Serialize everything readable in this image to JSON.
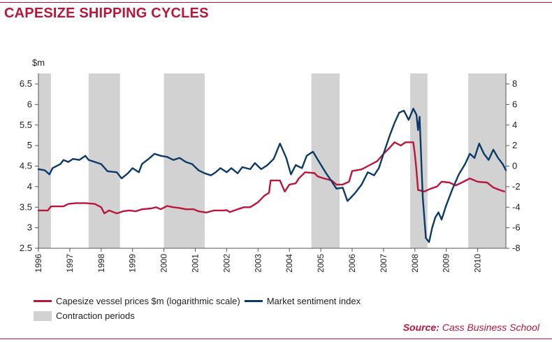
{
  "title": "CAPESIZE SHIPPING CYCLES",
  "source_label": "Source:",
  "source_text": "Cass Business School",
  "colors": {
    "brand": "#b8173b",
    "price": "#b8173b",
    "sentiment": "#0b3a66",
    "contraction": "#d2d2d2"
  },
  "chart_data": {
    "type": "line",
    "title": "CAPESIZE SHIPPING CYCLES",
    "ylabel_left": "$m",
    "y_left": {
      "min": 2.5,
      "max": 6.5,
      "ticks": [
        2.5,
        3,
        3.5,
        4,
        4.5,
        5,
        5.5,
        6,
        6.5
      ],
      "tick_labels": [
        "2.5",
        "3",
        "3.5",
        "4",
        "4.5",
        "5",
        "5.5",
        "6",
        "6.5"
      ]
    },
    "y_right": {
      "min": -8,
      "max": 8,
      "ticks": [
        -8,
        -6,
        -4,
        -2,
        0,
        2,
        4,
        6,
        8
      ],
      "tick_labels": [
        "-8",
        "-6",
        "-4",
        "-2",
        "0",
        "2",
        "4",
        "6",
        "8"
      ]
    },
    "x": {
      "min": 1996,
      "max": 2010.9,
      "ticks": [
        1996,
        1997,
        1998,
        1999,
        2000,
        2001,
        2002,
        2003,
        2004,
        2005,
        2006,
        2007,
        2008,
        2009,
        2010
      ],
      "tick_labels": [
        "1996",
        "1997",
        "1998",
        "1999",
        "2000",
        "2001",
        "2002",
        "2003",
        "2004",
        "2005",
        "2006",
        "2007",
        "2008",
        "2009",
        "2010"
      ]
    },
    "contraction_periods": [
      [
        1996.0,
        1996.4
      ],
      [
        1997.6,
        1998.6
      ],
      [
        2000.0,
        2001.3
      ],
      [
        2004.7,
        2005.6
      ],
      [
        2007.85,
        2008.4
      ],
      [
        2009.7,
        2010.9
      ]
    ],
    "series": [
      {
        "name": "Capesize vessel prices $m (logarithmic scale)",
        "axis": "left",
        "points": [
          [
            1996.0,
            3.42
          ],
          [
            1996.3,
            3.42
          ],
          [
            1996.4,
            3.52
          ],
          [
            1996.8,
            3.52
          ],
          [
            1996.95,
            3.58
          ],
          [
            1997.2,
            3.6
          ],
          [
            1997.5,
            3.6
          ],
          [
            1997.8,
            3.58
          ],
          [
            1998.0,
            3.5
          ],
          [
            1998.1,
            3.35
          ],
          [
            1998.25,
            3.42
          ],
          [
            1998.5,
            3.35
          ],
          [
            1998.7,
            3.4
          ],
          [
            1998.9,
            3.42
          ],
          [
            1999.1,
            3.4
          ],
          [
            1999.3,
            3.45
          ],
          [
            1999.6,
            3.47
          ],
          [
            1999.75,
            3.5
          ],
          [
            1999.9,
            3.45
          ],
          [
            2000.1,
            3.53
          ],
          [
            2000.3,
            3.5
          ],
          [
            2000.5,
            3.48
          ],
          [
            2000.7,
            3.45
          ],
          [
            2000.95,
            3.45
          ],
          [
            2001.1,
            3.4
          ],
          [
            2001.35,
            3.37
          ],
          [
            2001.6,
            3.42
          ],
          [
            2001.9,
            3.42
          ],
          [
            2002.0,
            3.43
          ],
          [
            2002.1,
            3.38
          ],
          [
            2002.35,
            3.45
          ],
          [
            2002.55,
            3.5
          ],
          [
            2002.75,
            3.5
          ],
          [
            2003.0,
            3.62
          ],
          [
            2003.2,
            3.78
          ],
          [
            2003.35,
            3.85
          ],
          [
            2003.4,
            4.15
          ],
          [
            2003.7,
            4.15
          ],
          [
            2003.85,
            3.88
          ],
          [
            2004.0,
            4.05
          ],
          [
            2004.2,
            4.08
          ],
          [
            2004.3,
            4.2
          ],
          [
            2004.5,
            4.35
          ],
          [
            2004.8,
            4.33
          ],
          [
            2004.9,
            4.25
          ],
          [
            2005.1,
            4.2
          ],
          [
            2005.35,
            4.15
          ],
          [
            2005.5,
            4.05
          ],
          [
            2005.7,
            4.05
          ],
          [
            2005.9,
            4.12
          ],
          [
            2006.0,
            4.38
          ],
          [
            2006.3,
            4.42
          ],
          [
            2006.5,
            4.5
          ],
          [
            2006.8,
            4.62
          ],
          [
            2007.0,
            4.8
          ],
          [
            2007.2,
            4.95
          ],
          [
            2007.35,
            5.08
          ],
          [
            2007.55,
            5.0
          ],
          [
            2007.7,
            5.08
          ],
          [
            2007.95,
            5.08
          ],
          [
            2008.0,
            4.78
          ],
          [
            2008.05,
            4.4
          ],
          [
            2008.1,
            3.92
          ],
          [
            2008.3,
            3.88
          ],
          [
            2008.5,
            3.95
          ],
          [
            2008.7,
            4.0
          ],
          [
            2008.85,
            4.12
          ],
          [
            2009.1,
            4.1
          ],
          [
            2009.3,
            4.03
          ],
          [
            2009.5,
            4.1
          ],
          [
            2009.75,
            4.2
          ],
          [
            2010.0,
            4.12
          ],
          [
            2010.3,
            4.1
          ],
          [
            2010.5,
            3.98
          ],
          [
            2010.7,
            3.92
          ],
          [
            2010.85,
            3.88
          ]
        ]
      },
      {
        "name": "Market sentiment index",
        "axis": "right",
        "points": [
          [
            1996.0,
            -0.3
          ],
          [
            1996.2,
            -0.4
          ],
          [
            1996.35,
            -0.8
          ],
          [
            1996.45,
            -0.2
          ],
          [
            1996.7,
            0.2
          ],
          [
            1996.8,
            0.6
          ],
          [
            1996.95,
            0.4
          ],
          [
            1997.1,
            0.7
          ],
          [
            1997.3,
            0.6
          ],
          [
            1997.5,
            1.0
          ],
          [
            1997.6,
            0.6
          ],
          [
            1997.8,
            0.4
          ],
          [
            1998.0,
            0.2
          ],
          [
            1998.2,
            -0.5
          ],
          [
            1998.5,
            -0.6
          ],
          [
            1998.65,
            -1.2
          ],
          [
            1998.85,
            -0.7
          ],
          [
            1999.0,
            -0.2
          ],
          [
            1999.2,
            -0.6
          ],
          [
            1999.3,
            0.2
          ],
          [
            1999.55,
            0.8
          ],
          [
            1999.7,
            1.2
          ],
          [
            1999.9,
            1.0
          ],
          [
            2000.1,
            0.9
          ],
          [
            2000.3,
            0.6
          ],
          [
            2000.5,
            0.8
          ],
          [
            2000.7,
            0.4
          ],
          [
            2000.9,
            0.2
          ],
          [
            2001.1,
            -0.4
          ],
          [
            2001.3,
            -0.7
          ],
          [
            2001.5,
            -0.9
          ],
          [
            2001.65,
            -0.6
          ],
          [
            2001.8,
            -0.2
          ],
          [
            2002.0,
            -0.6
          ],
          [
            2002.15,
            -0.2
          ],
          [
            2002.35,
            -0.7
          ],
          [
            2002.5,
            -0.1
          ],
          [
            2002.75,
            -0.3
          ],
          [
            2002.9,
            0.3
          ],
          [
            2003.1,
            -0.3
          ],
          [
            2003.3,
            0.1
          ],
          [
            2003.5,
            0.7
          ],
          [
            2003.7,
            2.2
          ],
          [
            2003.9,
            0.8
          ],
          [
            2004.05,
            -0.8
          ],
          [
            2004.2,
            0.1
          ],
          [
            2004.4,
            -0.2
          ],
          [
            2004.55,
            1.0
          ],
          [
            2004.75,
            1.4
          ],
          [
            2004.95,
            0.4
          ],
          [
            2005.15,
            -0.6
          ],
          [
            2005.35,
            -1.5
          ],
          [
            2005.5,
            -2.2
          ],
          [
            2005.7,
            -2.1
          ],
          [
            2005.85,
            -3.4
          ],
          [
            2005.95,
            -3.1
          ],
          [
            2006.1,
            -2.6
          ],
          [
            2006.3,
            -1.8
          ],
          [
            2006.5,
            -0.6
          ],
          [
            2006.7,
            -0.9
          ],
          [
            2006.85,
            -0.2
          ],
          [
            2007.0,
            1.2
          ],
          [
            2007.2,
            3.0
          ],
          [
            2007.35,
            4.2
          ],
          [
            2007.5,
            5.2
          ],
          [
            2007.65,
            5.4
          ],
          [
            2007.8,
            4.5
          ],
          [
            2007.95,
            5.6
          ],
          [
            2008.05,
            5.0
          ],
          [
            2008.1,
            3.5
          ],
          [
            2008.15,
            4.8
          ],
          [
            2008.25,
            -3.0
          ],
          [
            2008.35,
            -7.0
          ],
          [
            2008.45,
            -7.4
          ],
          [
            2008.55,
            -6.0
          ],
          [
            2008.65,
            -5.0
          ],
          [
            2008.75,
            -4.5
          ],
          [
            2008.85,
            -5.2
          ],
          [
            2009.0,
            -3.8
          ],
          [
            2009.2,
            -2.2
          ],
          [
            2009.4,
            -0.8
          ],
          [
            2009.6,
            0.2
          ],
          [
            2009.75,
            1.2
          ],
          [
            2009.9,
            0.8
          ],
          [
            2010.05,
            2.2
          ],
          [
            2010.2,
            1.2
          ],
          [
            2010.35,
            0.6
          ],
          [
            2010.5,
            1.6
          ],
          [
            2010.65,
            0.8
          ],
          [
            2010.8,
            0.2
          ],
          [
            2010.9,
            -0.4
          ]
        ]
      }
    ],
    "contraction_label": "Contraction periods"
  }
}
